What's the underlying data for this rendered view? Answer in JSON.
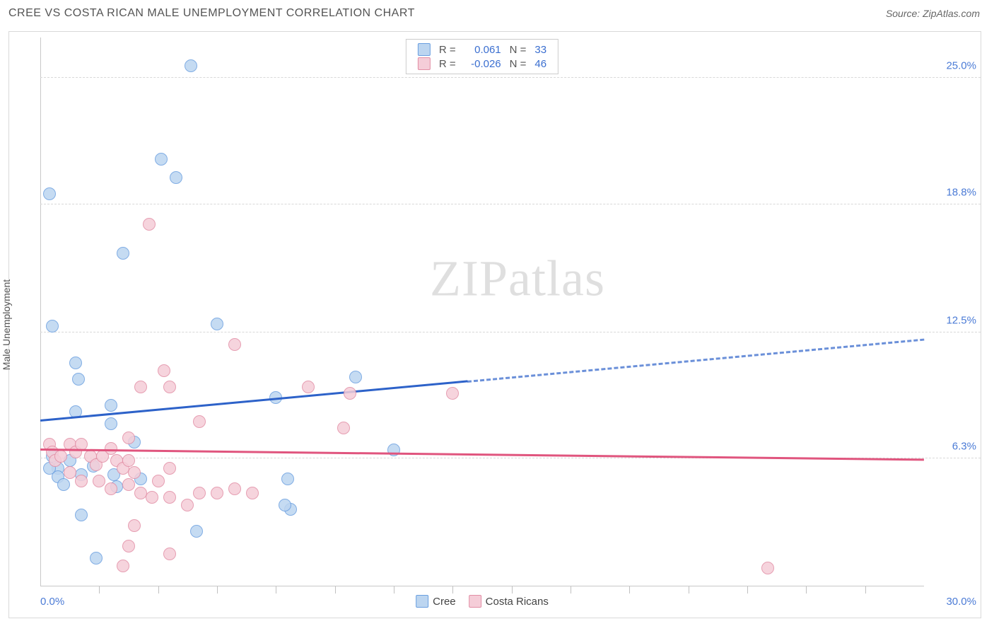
{
  "header": {
    "title": "CREE VS COSTA RICAN MALE UNEMPLOYMENT CORRELATION CHART",
    "source_label": "Source:",
    "source_value": "ZipAtlas.com"
  },
  "ylabel": "Male Unemployment",
  "watermark_a": "ZIP",
  "watermark_b": "atlas",
  "chart": {
    "type": "scatter-correlation",
    "background_color": "#ffffff",
    "grid_color": "#d8d8d8",
    "axis_color": "#c8c8c8",
    "tick_label_color": "#4b7bd6",
    "xlim": [
      0.0,
      30.0
    ],
    "ylim": [
      0.0,
      27.0
    ],
    "x_min_label": "0.0%",
    "x_max_label": "30.0%",
    "x_tick_positions": [
      2,
      4,
      6,
      8,
      10,
      12,
      14,
      16,
      18,
      20,
      22,
      24,
      26,
      28
    ],
    "y_ticks": [
      {
        "value": 6.3,
        "label": "6.3%"
      },
      {
        "value": 12.5,
        "label": "12.5%"
      },
      {
        "value": 18.8,
        "label": "18.8%"
      },
      {
        "value": 25.0,
        "label": "25.0%"
      }
    ],
    "marker_radius": 9,
    "marker_border_width": 1.5,
    "trend_line_width": 3,
    "series": [
      {
        "name": "Cree",
        "fill_color": "#bcd5f0",
        "border_color": "#6a9fe0",
        "trend_color": "#2d62c9",
        "r": "0.061",
        "n": "33",
        "trend": {
          "x1": 0.0,
          "y1": 8.2,
          "x2": 30.0,
          "y2": 12.2,
          "solid_until_x": 14.5
        },
        "points": [
          [
            0.3,
            19.3
          ],
          [
            0.4,
            12.8
          ],
          [
            5.1,
            25.6
          ],
          [
            4.1,
            21.0
          ],
          [
            4.6,
            20.1
          ],
          [
            2.8,
            16.4
          ],
          [
            1.2,
            11.0
          ],
          [
            1.3,
            10.2
          ],
          [
            1.2,
            8.6
          ],
          [
            2.4,
            8.9
          ],
          [
            2.4,
            8.0
          ],
          [
            6.0,
            12.9
          ],
          [
            8.0,
            9.3
          ],
          [
            3.2,
            7.1
          ],
          [
            10.7,
            10.3
          ],
          [
            12.0,
            6.7
          ],
          [
            0.4,
            6.4
          ],
          [
            0.6,
            5.8
          ],
          [
            0.6,
            5.4
          ],
          [
            1.4,
            5.5
          ],
          [
            1.0,
            6.2
          ],
          [
            2.5,
            5.5
          ],
          [
            2.6,
            4.9
          ],
          [
            3.4,
            5.3
          ],
          [
            8.5,
            3.8
          ],
          [
            8.4,
            5.3
          ],
          [
            5.3,
            2.7
          ],
          [
            1.4,
            3.5
          ],
          [
            1.9,
            1.4
          ],
          [
            1.8,
            5.9
          ],
          [
            0.8,
            5.0
          ],
          [
            0.3,
            5.8
          ],
          [
            8.3,
            4.0
          ]
        ]
      },
      {
        "name": "Costa Ricans",
        "fill_color": "#f5cdd8",
        "border_color": "#e28ea5",
        "trend_color": "#e0557e",
        "r": "-0.026",
        "n": "46",
        "trend": {
          "x1": 0.0,
          "y1": 6.8,
          "x2": 30.0,
          "y2": 6.3,
          "solid_until_x": 30.0
        },
        "points": [
          [
            3.7,
            17.8
          ],
          [
            6.6,
            11.9
          ],
          [
            4.2,
            10.6
          ],
          [
            4.4,
            9.8
          ],
          [
            3.4,
            9.8
          ],
          [
            5.4,
            8.1
          ],
          [
            9.1,
            9.8
          ],
          [
            10.5,
            9.5
          ],
          [
            10.3,
            7.8
          ],
          [
            14.0,
            9.5
          ],
          [
            0.3,
            7.0
          ],
          [
            0.4,
            6.6
          ],
          [
            0.5,
            6.2
          ],
          [
            0.7,
            6.4
          ],
          [
            1.0,
            7.0
          ],
          [
            1.2,
            6.6
          ],
          [
            1.4,
            7.0
          ],
          [
            1.7,
            6.4
          ],
          [
            1.9,
            6.0
          ],
          [
            2.1,
            6.4
          ],
          [
            2.4,
            6.8
          ],
          [
            2.6,
            6.2
          ],
          [
            2.8,
            5.8
          ],
          [
            3.0,
            6.2
          ],
          [
            3.2,
            5.6
          ],
          [
            1.0,
            5.6
          ],
          [
            1.4,
            5.2
          ],
          [
            2.0,
            5.2
          ],
          [
            2.4,
            4.8
          ],
          [
            3.0,
            5.0
          ],
          [
            3.4,
            4.6
          ],
          [
            3.8,
            4.4
          ],
          [
            4.4,
            4.4
          ],
          [
            4.0,
            5.2
          ],
          [
            4.4,
            5.8
          ],
          [
            5.0,
            4.0
          ],
          [
            5.4,
            4.6
          ],
          [
            6.0,
            4.6
          ],
          [
            6.6,
            4.8
          ],
          [
            7.2,
            4.6
          ],
          [
            3.0,
            2.0
          ],
          [
            4.4,
            1.6
          ],
          [
            2.8,
            1.0
          ],
          [
            3.0,
            7.3
          ],
          [
            24.7,
            0.9
          ],
          [
            3.2,
            3.0
          ]
        ]
      }
    ]
  },
  "legend_bottom": [
    {
      "label": "Cree",
      "fill": "#bcd5f0",
      "border": "#6a9fe0"
    },
    {
      "label": "Costa Ricans",
      "fill": "#f5cdd8",
      "border": "#e28ea5"
    }
  ]
}
